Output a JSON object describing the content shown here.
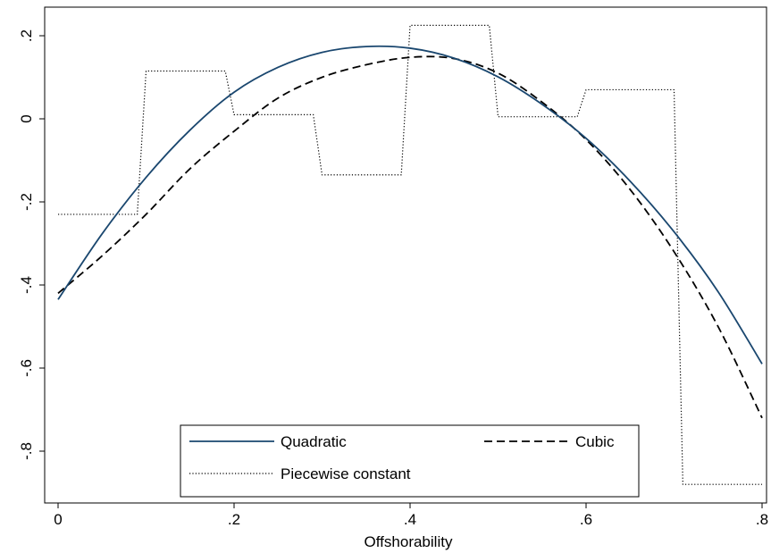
{
  "chart_data": {
    "type": "line",
    "title": "",
    "xlabel": "Offshorability",
    "ylabel": "",
    "xlim": [
      0,
      0.8
    ],
    "ylim": [
      -0.9,
      0.24
    ],
    "x_ticks": [
      0,
      0.2,
      0.4,
      0.6,
      0.8
    ],
    "x_tick_labels": [
      "0",
      ".2",
      ".4",
      ".6",
      ".8"
    ],
    "y_ticks": [
      -0.8,
      -0.6,
      -0.4,
      -0.2,
      0,
      0.2
    ],
    "y_tick_labels": [
      "-.8",
      "-.6",
      "-.4",
      "-.2",
      "0",
      ".2"
    ],
    "grid": false,
    "legend_position": "bottom",
    "series": [
      {
        "name": "Quadratic",
        "style": "solid",
        "color": "#1a476f",
        "x": [
          0,
          0.05,
          0.1,
          0.15,
          0.2,
          0.25,
          0.3,
          0.35,
          0.4,
          0.45,
          0.5,
          0.55,
          0.6,
          0.65,
          0.7,
          0.75,
          0.8
        ],
        "y": [
          -0.435,
          -0.277,
          -0.141,
          -0.027,
          0.064,
          0.124,
          0.16,
          0.174,
          0.17,
          0.146,
          0.101,
          0.035,
          -0.047,
          -0.15,
          -0.272,
          -0.416,
          -0.59
        ]
      },
      {
        "name": "Cubic",
        "style": "dashed",
        "color": "#000000",
        "x": [
          0,
          0.05,
          0.1,
          0.15,
          0.2,
          0.25,
          0.3,
          0.35,
          0.4,
          0.45,
          0.5,
          0.55,
          0.6,
          0.65,
          0.7,
          0.75,
          0.8
        ],
        "y": [
          -0.42,
          -0.33,
          -0.23,
          -0.12,
          -0.03,
          0.05,
          0.1,
          0.13,
          0.148,
          0.145,
          0.11,
          0.04,
          -0.05,
          -0.17,
          -0.32,
          -0.5,
          -0.72
        ]
      },
      {
        "name": "Piecewise constant",
        "style": "dotted",
        "color": "#000000",
        "x": [
          0,
          0.09,
          0.1,
          0.19,
          0.2,
          0.29,
          0.3,
          0.39,
          0.4,
          0.49,
          0.5,
          0.59,
          0.6,
          0.7,
          0.71,
          0.8
        ],
        "y": [
          -0.23,
          -0.23,
          0.115,
          0.115,
          0.01,
          0.01,
          -0.135,
          -0.135,
          0.225,
          0.225,
          0.005,
          0.005,
          0.07,
          0.07,
          -0.88,
          -0.88
        ]
      }
    ]
  }
}
